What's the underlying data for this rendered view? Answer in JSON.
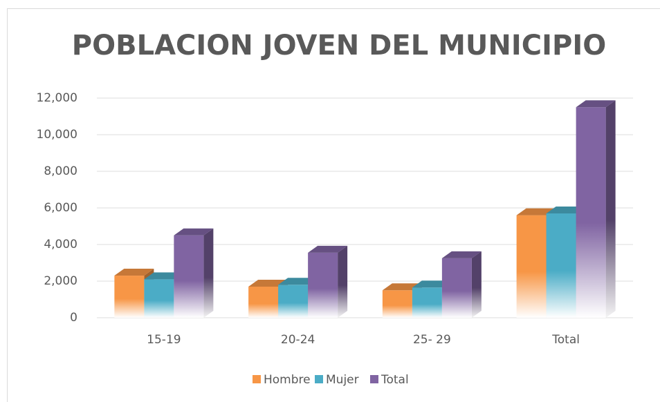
{
  "chart_data": {
    "type": "bar3d",
    "title": "POBLACION JOVEN DEL MUNICIPIO",
    "categories": [
      "15-19",
      "20-24",
      "25- 29",
      "Total"
    ],
    "series": [
      {
        "name": "Hombre",
        "color": "#f79646",
        "values": [
          2300,
          1700,
          1500,
          5600
        ]
      },
      {
        "name": "Mujer",
        "color": "#4bacc6",
        "values": [
          2100,
          1800,
          1650,
          5700
        ]
      },
      {
        "name": "Total",
        "color": "#8064a2",
        "values": [
          4500,
          3550,
          3250,
          11500
        ]
      }
    ],
    "ylim": [
      0,
      12000
    ],
    "yticks": [
      0,
      {
        "value": 2000,
        "label": "2,000"
      },
      {
        "value": 4000,
        "label": "4,000"
      },
      {
        "value": 6000,
        "label": "6,000"
      },
      {
        "value": 8000,
        "label": "8,000"
      },
      {
        "value": 10000,
        "label": "10,000"
      },
      {
        "value": 12000,
        "label": "12,000"
      }
    ],
    "grid": true,
    "legend": "bottom"
  }
}
